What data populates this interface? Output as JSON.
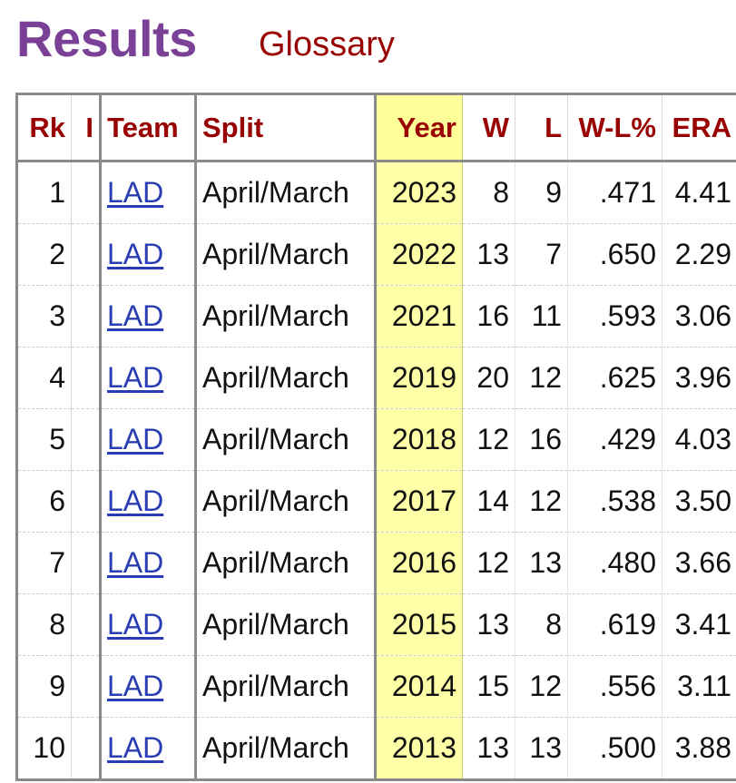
{
  "header": {
    "title": "Results",
    "glossary_link": "Glossary"
  },
  "colors": {
    "title": "#7a4197",
    "header_text": "#990000",
    "link": "#2a3cb4",
    "sorted_column_bg": "#ffffa8"
  },
  "table": {
    "columns": [
      "Rk",
      "I",
      "Team",
      "Split",
      "Year",
      "W",
      "L",
      "W-L%",
      "ERA"
    ],
    "sorted_column": "Year",
    "rows": [
      {
        "rk": "1",
        "i": "",
        "team": "LAD",
        "split": "April/March",
        "year": "2023",
        "w": "8",
        "l": "9",
        "wl_pct": ".471",
        "era": "4.41"
      },
      {
        "rk": "2",
        "i": "",
        "team": "LAD",
        "split": "April/March",
        "year": "2022",
        "w": "13",
        "l": "7",
        "wl_pct": ".650",
        "era": "2.29"
      },
      {
        "rk": "3",
        "i": "",
        "team": "LAD",
        "split": "April/March",
        "year": "2021",
        "w": "16",
        "l": "11",
        "wl_pct": ".593",
        "era": "3.06"
      },
      {
        "rk": "4",
        "i": "",
        "team": "LAD",
        "split": "April/March",
        "year": "2019",
        "w": "20",
        "l": "12",
        "wl_pct": ".625",
        "era": "3.96"
      },
      {
        "rk": "5",
        "i": "",
        "team": "LAD",
        "split": "April/March",
        "year": "2018",
        "w": "12",
        "l": "16",
        "wl_pct": ".429",
        "era": "4.03"
      },
      {
        "rk": "6",
        "i": "",
        "team": "LAD",
        "split": "April/March",
        "year": "2017",
        "w": "14",
        "l": "12",
        "wl_pct": ".538",
        "era": "3.50"
      },
      {
        "rk": "7",
        "i": "",
        "team": "LAD",
        "split": "April/March",
        "year": "2016",
        "w": "12",
        "l": "13",
        "wl_pct": ".480",
        "era": "3.66"
      },
      {
        "rk": "8",
        "i": "",
        "team": "LAD",
        "split": "April/March",
        "year": "2015",
        "w": "13",
        "l": "8",
        "wl_pct": ".619",
        "era": "3.41"
      },
      {
        "rk": "9",
        "i": "",
        "team": "LAD",
        "split": "April/March",
        "year": "2014",
        "w": "15",
        "l": "12",
        "wl_pct": ".556",
        "era": "3.11"
      },
      {
        "rk": "10",
        "i": "",
        "team": "LAD",
        "split": "April/March",
        "year": "2013",
        "w": "13",
        "l": "13",
        "wl_pct": ".500",
        "era": "3.88"
      }
    ]
  }
}
